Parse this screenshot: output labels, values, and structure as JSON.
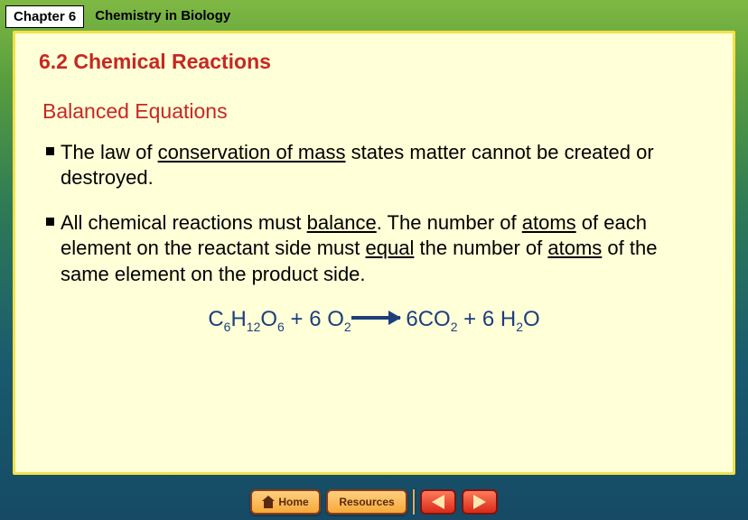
{
  "header": {
    "chapter_label": "Chapter 6",
    "chapter_title": "Chemistry in Biology"
  },
  "content": {
    "section_title": "6.2 Chemical Reactions",
    "sub_title": "Balanced Equations",
    "bullet1_pre": "The law of ",
    "bullet1_u1": "conservation of mass",
    "bullet1_post": " states matter cannot be created or destroyed.",
    "bullet2_pre": "All chemical reactions must ",
    "bullet2_u1": "balance",
    "bullet2_mid1": ". The number of ",
    "bullet2_u2": "atoms",
    "bullet2_mid2": " of each element on the reactant side must ",
    "bullet2_u3": "equal",
    "bullet2_mid3": " the number of ",
    "bullet2_u4": "atoms",
    "bullet2_post": " of the same element on the product side."
  },
  "equation": {
    "r1_coef": "C",
    "r1_s1": "6",
    "r1_b": "H",
    "r1_s2": "12",
    "r1_c": "O",
    "r1_s3": "6",
    "plus1": " + ",
    "r2_coef": "6 O",
    "r2_s1": "2",
    "p1_coef": " 6CO",
    "p1_s1": "2",
    "plus2": " + ",
    "p2_coef": "6 H",
    "p2_s1": "2",
    "p2_b": "O"
  },
  "nav": {
    "home": "Home",
    "resources": "Resources"
  },
  "style": {
    "bg_gradient": [
      "#7fb843",
      "#5a9e3e",
      "#2e7a56",
      "#1a5a6e",
      "#164a65"
    ],
    "content_bg": "#ffffd8",
    "content_border": "#f2e04a",
    "title_color": "#c62822",
    "text_color": "#000000",
    "equation_color": "#1c3f7c",
    "btn_gradient": [
      "#ffd080",
      "#f6a838"
    ],
    "arrow_btn_gradient": [
      "#ff7a5a",
      "#d82a18"
    ]
  }
}
